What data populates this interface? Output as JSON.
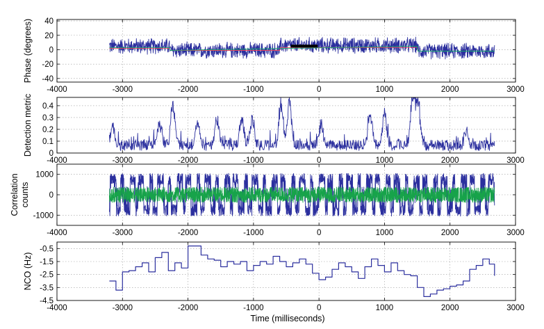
{
  "figure": {
    "xlabel": "Time (milliseconds)"
  },
  "chart_data": [
    {
      "type": "line",
      "ylabel": "Phase (degrees)",
      "xlim": [
        -4000,
        3000
      ],
      "ylim": [
        -45,
        42
      ],
      "xticks": [
        -4000,
        -3000,
        -2000,
        -1000,
        0,
        1000,
        2000,
        3000
      ],
      "yticks": [
        -40,
        -20,
        0,
        20,
        40
      ],
      "grid": true,
      "noise_amplitude": 9,
      "series": [
        {
          "color": "#2b2f9e",
          "role": "measured phase (noisy)",
          "x": [
            -3200,
            -2280,
            -2270,
            -600,
            -590,
            1500,
            1510,
            2680
          ],
          "y": [
            5,
            5,
            -1,
            -1,
            6,
            6,
            -2,
            -2
          ]
        },
        {
          "color": "#e8455a",
          "role": "reference steps",
          "x": [
            -3200,
            -2280,
            -2270,
            -600,
            -590,
            1500,
            1510,
            2680
          ],
          "y": [
            2,
            2,
            -1,
            -1,
            3,
            3,
            -2,
            -2
          ]
        },
        {
          "color": "#14a66f",
          "role": "segment fit",
          "x": [
            -3200,
            -2280,
            -2270,
            1500,
            1510,
            2680
          ],
          "y": [
            3,
            3,
            -1,
            5,
            -2,
            -2
          ]
        },
        {
          "color": "#000000",
          "role": "dark segment",
          "x": [
            -430,
            -20
          ],
          "y": [
            5,
            5
          ]
        }
      ]
    },
    {
      "type": "line",
      "ylabel": "Detection metric",
      "xlim": [
        -4000,
        3000
      ],
      "ylim": [
        0,
        0.47
      ],
      "xticks": [
        -4000,
        -3000,
        -2000,
        -1000,
        0,
        1000,
        2000,
        3000
      ],
      "yticks": [
        0,
        0.1,
        0.2,
        0.3,
        0.4
      ],
      "grid": true,
      "series": [
        {
          "color": "#2b2f9e",
          "peaks": [
            {
              "x": -3150,
              "y": 0.2
            },
            {
              "x": -2430,
              "y": 0.2
            },
            {
              "x": -2230,
              "y": 0.38
            },
            {
              "x": -1850,
              "y": 0.23
            },
            {
              "x": -1560,
              "y": 0.24
            },
            {
              "x": -1180,
              "y": 0.27
            },
            {
              "x": -1020,
              "y": 0.25
            },
            {
              "x": -580,
              "y": 0.36
            },
            {
              "x": -450,
              "y": 0.39
            },
            {
              "x": 30,
              "y": 0.19
            },
            {
              "x": 780,
              "y": 0.3
            },
            {
              "x": 1000,
              "y": 0.27
            },
            {
              "x": 1430,
              "y": 0.46
            },
            {
              "x": 1510,
              "y": 0.44
            },
            {
              "x": 2250,
              "y": 0.12
            }
          ],
          "x_range": [
            -3200,
            2680
          ]
        }
      ]
    },
    {
      "type": "line",
      "ylabel": "Correlation\ncounts",
      "xlim": [
        -4000,
        3000
      ],
      "ylim": [
        -1500,
        1500
      ],
      "xticks": [
        -4000,
        -3000,
        -2000,
        -1000,
        0,
        1000,
        2000,
        3000
      ],
      "yticks": [
        -1000,
        0,
        1000
      ],
      "grid": true,
      "series": [
        {
          "color": "#2b2f9e",
          "role": "bipolar counts",
          "amplitude": 1050,
          "x_range": [
            -3200,
            2680
          ]
        },
        {
          "color": "#17a34a",
          "role": "quadrature counts",
          "amplitude": 380,
          "x_range": [
            -3200,
            2680
          ]
        }
      ]
    },
    {
      "type": "line",
      "ylabel": "NCO (Hz)",
      "xlim": [
        -4000,
        3000
      ],
      "ylim": [
        -4.5,
        0
      ],
      "xticks": [
        -4000,
        -3000,
        -2000,
        -1000,
        0,
        1000,
        2000,
        3000
      ],
      "yticks": [
        -0.5,
        -1.5,
        -2.5,
        -3.5,
        -4.5
      ],
      "grid": true,
      "series": [
        {
          "color": "#2b2f9e",
          "step": true,
          "x": [
            -3200,
            -3100,
            -3000,
            -2900,
            -2800,
            -2700,
            -2600,
            -2500,
            -2400,
            -2300,
            -2200,
            -2100,
            -2000,
            -1900,
            -1800,
            -1700,
            -1600,
            -1500,
            -1400,
            -1300,
            -1200,
            -1100,
            -1000,
            -900,
            -800,
            -700,
            -600,
            -500,
            -400,
            -300,
            -200,
            -100,
            0,
            100,
            200,
            300,
            400,
            500,
            600,
            700,
            800,
            900,
            1000,
            1100,
            1200,
            1300,
            1400,
            1500,
            1600,
            1700,
            1800,
            1900,
            2000,
            2100,
            2200,
            2300,
            2400,
            2500,
            2600,
            2680
          ],
          "y": [
            -3.0,
            -3.7,
            -2.3,
            -2.2,
            -1.9,
            -1.6,
            -2.3,
            -1.2,
            -0.8,
            -2.2,
            -1.6,
            -2.0,
            -0.3,
            -0.3,
            -1.0,
            -1.3,
            -1.4,
            -1.9,
            -1.5,
            -1.7,
            -1.5,
            -2.2,
            -1.8,
            -1.5,
            -1.7,
            -1.1,
            -1.5,
            -1.9,
            -1.6,
            -1.3,
            -1.7,
            -2.4,
            -2.9,
            -2.7,
            -2.1,
            -1.6,
            -1.9,
            -2.3,
            -2.8,
            -1.9,
            -1.3,
            -1.8,
            -2.3,
            -1.6,
            -2.2,
            -2.5,
            -2.6,
            -3.5,
            -4.2,
            -4.0,
            -3.7,
            -3.6,
            -3.4,
            -3.3,
            -3.0,
            -2.1,
            -1.8,
            -1.3,
            -1.7,
            -2.6
          ]
        }
      ]
    }
  ]
}
